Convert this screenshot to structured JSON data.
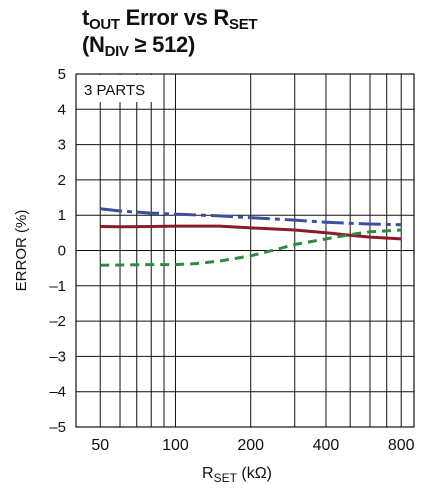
{
  "title": {
    "line1": {
      "pre": "t",
      "sub1": "OUT",
      "mid": " Error vs R",
      "sub2": "SET"
    },
    "line2": {
      "pre": "(N",
      "sub": "DIV",
      "post": " ≥ 512)"
    }
  },
  "chart_data": {
    "type": "line",
    "xscale": "log",
    "xlim": [
      40,
      900
    ],
    "ylim": [
      -5,
      5
    ],
    "xticks": [
      50,
      100,
      200,
      400,
      800
    ],
    "xtick_labels": [
      "50",
      "100",
      "200",
      "400",
      "800"
    ],
    "yticks": [
      -5,
      -4,
      -3,
      -2,
      -1,
      0,
      1,
      2,
      3,
      4,
      5
    ],
    "ytick_labels": [
      "–5",
      "–4",
      "–3",
      "–2",
      "–1",
      "0",
      "1",
      "2",
      "3",
      "4",
      "5"
    ],
    "xgrid": [
      40,
      50,
      60,
      70,
      80,
      90,
      100,
      200,
      300,
      400,
      500,
      600,
      700,
      800,
      900
    ],
    "grid": true,
    "xlabel": {
      "pre": "R",
      "sub": "SET",
      "post": " (kΩ)"
    },
    "ylabel": "ERROR (%)",
    "annotation": "3 PARTS",
    "series": [
      {
        "color": "#3a4f9e",
        "dash": "22,5,5,5",
        "x": [
          50,
          60,
          80,
          100,
          150,
          200,
          300,
          400,
          500,
          600,
          800
        ],
        "y": [
          1.18,
          1.12,
          1.06,
          1.03,
          0.98,
          0.93,
          0.86,
          0.8,
          0.77,
          0.75,
          0.73
        ]
      },
      {
        "color": "#8b1a2b",
        "dash": "",
        "x": [
          50,
          60,
          80,
          100,
          150,
          200,
          300,
          400,
          500,
          600,
          800
        ],
        "y": [
          0.68,
          0.67,
          0.68,
          0.69,
          0.69,
          0.64,
          0.58,
          0.5,
          0.43,
          0.38,
          0.33
        ]
      },
      {
        "color": "#2e8b3d",
        "dash": "9,6",
        "x": [
          50,
          60,
          80,
          100,
          120,
          150,
          200,
          250,
          300,
          400,
          500,
          600,
          800
        ],
        "y": [
          -0.42,
          -0.41,
          -0.4,
          -0.4,
          -0.37,
          -0.3,
          -0.15,
          0.02,
          0.17,
          0.33,
          0.45,
          0.53,
          0.58
        ]
      }
    ]
  }
}
